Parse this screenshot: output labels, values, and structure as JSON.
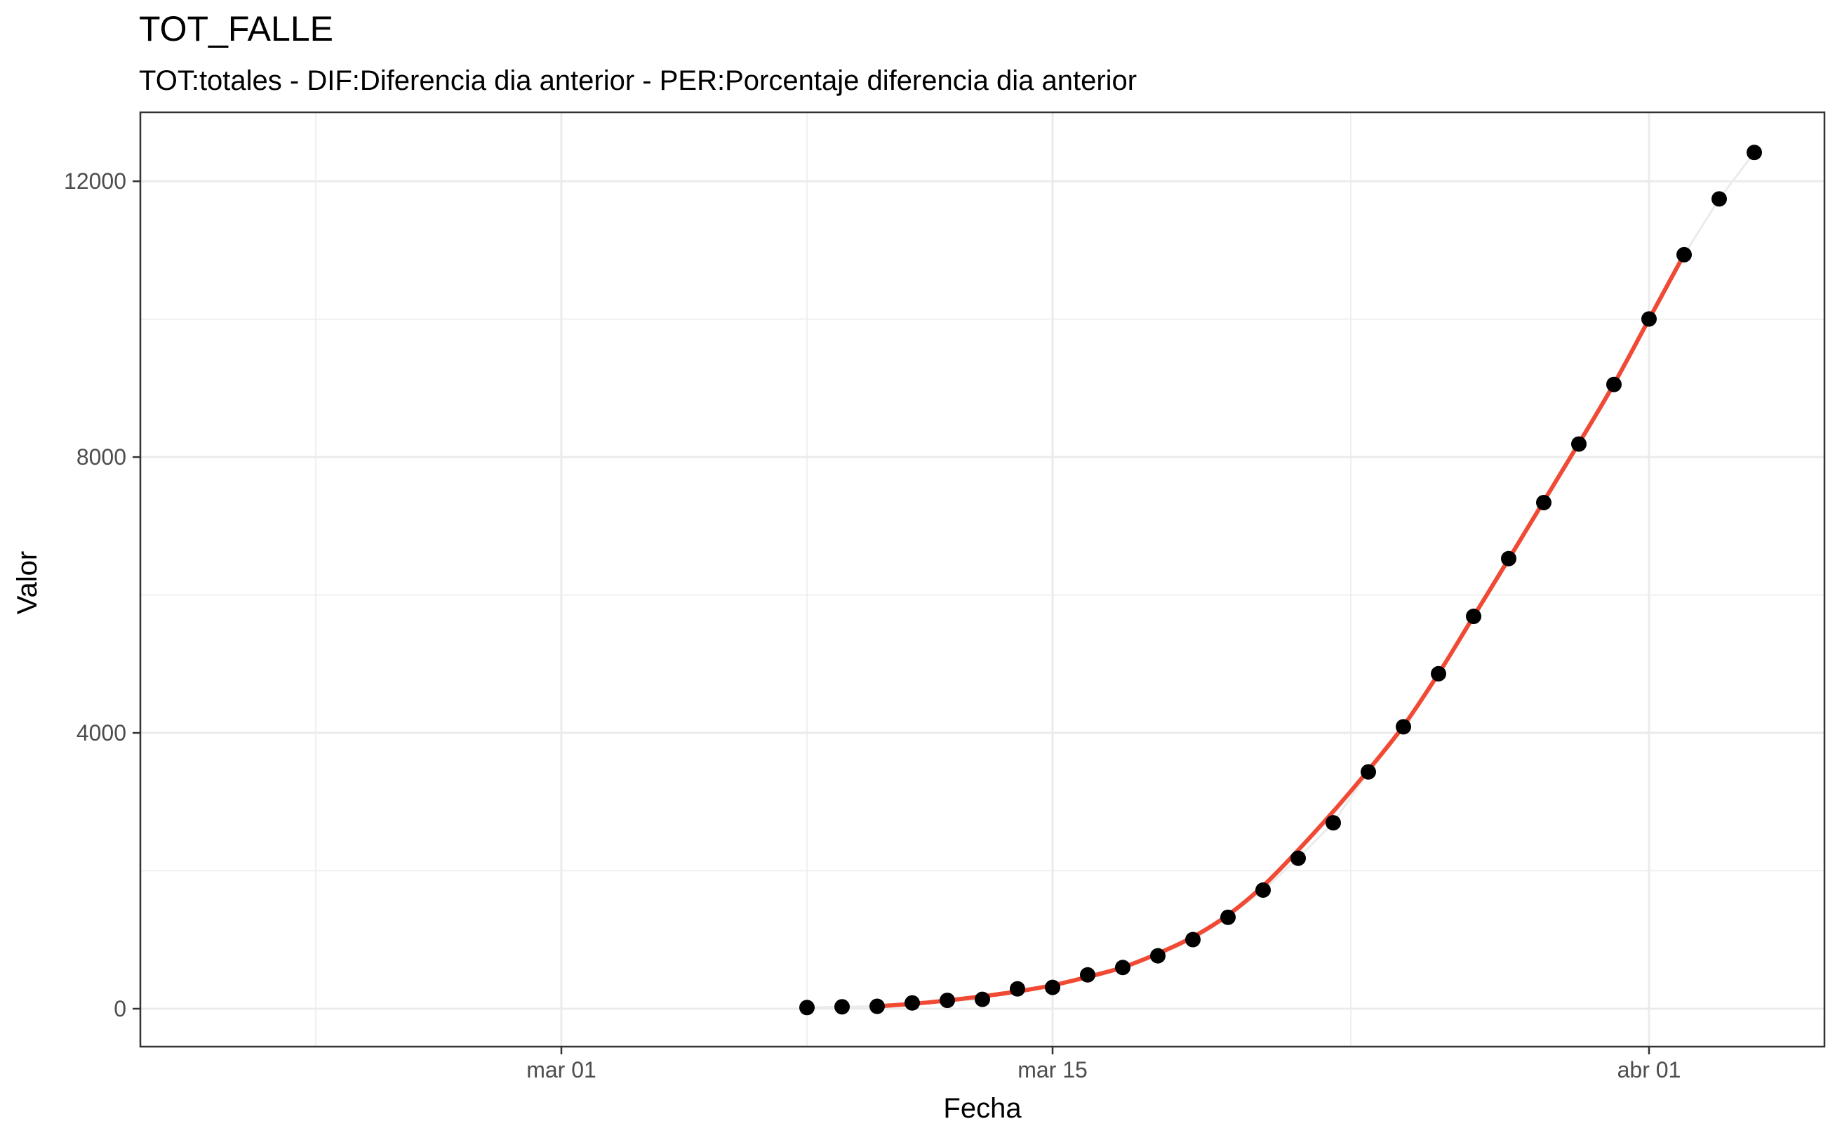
{
  "chart_data": {
    "type": "scatter",
    "title": "TOT_FALLE",
    "subtitle": "TOT:totales - DIF:Diferencia dia anterior - PER:Porcentaje diferencia dia anterior",
    "xlabel": "Fecha",
    "ylabel": "Valor",
    "x_ticks": [
      {
        "date": "2020-03-01",
        "label": "mar 01"
      },
      {
        "date": "2020-03-15",
        "label": "mar 15"
      },
      {
        "date": "2020-04-01",
        "label": "abr 01"
      }
    ],
    "y_ticks": [
      0,
      4000,
      8000,
      12000
    ],
    "xlim": [
      "2020-02-18",
      "2020-04-06"
    ],
    "ylim": [
      -550,
      13000
    ],
    "grid": true,
    "colors": {
      "points": "#000000",
      "fit_line": "#f04a35",
      "connector": "#ebebeb",
      "grid": "#ebebeb",
      "panel_border": "#333333"
    },
    "series": [
      {
        "kind": "points",
        "x": [
          "2020-03-08",
          "2020-03-09",
          "2020-03-10",
          "2020-03-11",
          "2020-03-12",
          "2020-03-13",
          "2020-03-14",
          "2020-03-15",
          "2020-03-16",
          "2020-03-17",
          "2020-03-18",
          "2020-03-19",
          "2020-03-20",
          "2020-03-21",
          "2020-03-22",
          "2020-03-23",
          "2020-03-24",
          "2020-03-25",
          "2020-03-26",
          "2020-03-27",
          "2020-03-28",
          "2020-03-29",
          "2020-03-30",
          "2020-03-31",
          "2020-04-01",
          "2020-04-02",
          "2020-04-03",
          "2020-04-04"
        ],
        "y": [
          17,
          28,
          35,
          84,
          121,
          136,
          288,
          309,
          491,
          598,
          767,
          1002,
          1326,
          1720,
          2182,
          2696,
          3434,
          4089,
          4858,
          5690,
          6528,
          7340,
          8189,
          9053,
          10003,
          10935,
          11744,
          12418
        ]
      },
      {
        "kind": "smooth",
        "x": [
          "2020-03-10",
          "2020-03-11",
          "2020-03-12",
          "2020-03-13",
          "2020-03-14",
          "2020-03-15",
          "2020-03-16",
          "2020-03-17",
          "2020-03-18",
          "2020-03-19",
          "2020-03-20",
          "2020-03-21",
          "2020-03-22",
          "2020-03-23",
          "2020-03-24",
          "2020-03-25",
          "2020-03-26",
          "2020-03-27",
          "2020-03-28",
          "2020-03-29",
          "2020-03-30",
          "2020-03-31",
          "2020-04-01",
          "2020-04-02"
        ],
        "y": [
          35,
          70,
          120,
          180,
          250,
          340,
          460,
          600,
          800,
          1040,
          1360,
          1780,
          2300,
          2860,
          3460,
          4100,
          4860,
          5690,
          6520,
          7360,
          8200,
          9060,
          10000,
          10940
        ]
      }
    ]
  }
}
